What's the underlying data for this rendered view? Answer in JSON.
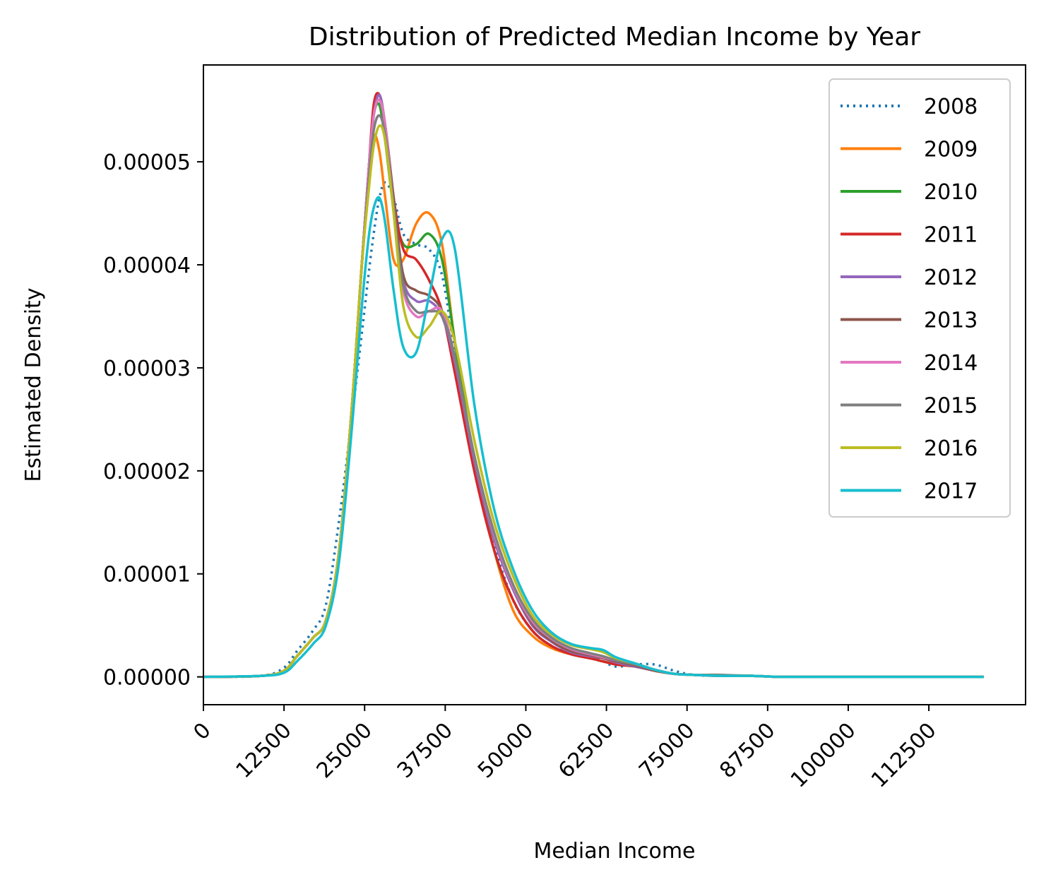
{
  "chart_data": {
    "type": "line",
    "title": "Distribution of Predicted Median Income by Year",
    "xlabel": "Median Income",
    "ylabel": "Estimated Density",
    "xlim": [
      0,
      127500
    ],
    "ylim": [
      -2.7e-06,
      5.94e-05
    ],
    "xticks": [
      "0",
      "12500",
      "25000",
      "37500",
      "50000",
      "62500",
      "75000",
      "87500",
      "100000",
      "112500"
    ],
    "yticks": [
      "0.00000",
      "0.00001",
      "0.00002",
      "0.00003",
      "0.00004",
      "0.00005"
    ],
    "grid": false,
    "legend_position": "top-right",
    "series": [
      {
        "name": "2008",
        "color": "#1f77b4",
        "dash": "dotted",
        "x": [
          0,
          9000,
          12500,
          14500,
          17000,
          19000,
          21000,
          23000,
          24500,
          25600,
          26400,
          27300,
          28200,
          29500,
          31000,
          33000,
          35000,
          37000,
          39000,
          42000,
          45000,
          48000,
          51000,
          54000,
          57000,
          60000,
          62000,
          64000,
          67000,
          70000,
          73000,
          76000,
          80000,
          85000,
          90000,
          100000,
          110000,
          121000
        ],
        "y": [
          0,
          1e-07,
          9e-07,
          2.5e-06,
          4.5e-06,
          7e-06,
          1.5e-05,
          2.5e-05,
          3.3e-05,
          3.9e-05,
          4.3e-05,
          4.65e-05,
          4.8e-05,
          4.65e-05,
          4.3e-05,
          4.2e-05,
          4.15e-05,
          3.9e-05,
          3.15e-05,
          2.1e-05,
          1.3e-05,
          7.5e-06,
          4.5e-06,
          3e-06,
          2.3e-06,
          2e-06,
          1.5e-06,
          1e-06,
          1.2e-06,
          1.2e-06,
          6e-07,
          2e-07,
          1e-07,
          1e-07,
          0,
          0,
          0,
          0
        ]
      },
      {
        "name": "2009",
        "color": "#ff7f0e",
        "dash": "solid",
        "x": [
          0,
          9000,
          12500,
          14500,
          17000,
          19000,
          21000,
          23000,
          24500,
          25600,
          26400,
          27300,
          28200,
          29500,
          31000,
          33000,
          35000,
          37000,
          39000,
          42000,
          45000,
          48000,
          51000,
          54000,
          57000,
          60000,
          62000,
          64000,
          67000,
          70000,
          73000,
          76000,
          80000,
          85000,
          90000,
          100000,
          110000,
          121000
        ],
        "y": [
          0,
          1e-07,
          6e-07,
          2e-06,
          3.8e-06,
          5.5e-06,
          1.2e-05,
          2.6e-05,
          3.95e-05,
          4.8e-05,
          5.25e-05,
          5.1e-05,
          4.65e-05,
          4.05e-05,
          4.05e-05,
          4.4e-05,
          4.5e-05,
          4.2e-05,
          3.25e-05,
          2.1e-05,
          1.25e-05,
          6.5e-06,
          4e-06,
          2.8e-06,
          2.2e-06,
          1.8e-06,
          1.5e-06,
          1.2e-06,
          1e-06,
          6e-07,
          3e-07,
          2e-07,
          1e-07,
          1e-07,
          0,
          0,
          0,
          0
        ]
      },
      {
        "name": "2010",
        "color": "#2ca02c",
        "dash": "solid",
        "x": [
          0,
          9000,
          12500,
          14500,
          17000,
          19000,
          21000,
          23000,
          24500,
          25600,
          26400,
          27300,
          28200,
          29500,
          31000,
          33000,
          35000,
          37000,
          39000,
          42000,
          45000,
          48000,
          51000,
          54000,
          57000,
          60000,
          62000,
          64000,
          67000,
          70000,
          73000,
          76000,
          80000,
          85000,
          90000,
          100000,
          110000,
          121000
        ],
        "y": [
          0,
          1e-07,
          6e-07,
          2e-06,
          3.8e-06,
          5.5e-06,
          1.2e-05,
          2.6e-05,
          3.95e-05,
          4.9e-05,
          5.45e-05,
          5.55e-05,
          5.2e-05,
          4.55e-05,
          4.2e-05,
          4.2e-05,
          4.3e-05,
          4.05e-05,
          3.25e-05,
          2.1e-05,
          1.25e-05,
          7.5e-06,
          4.5e-06,
          3e-06,
          2.2e-06,
          1.8e-06,
          1.5e-06,
          1.2e-06,
          1e-06,
          6e-07,
          3e-07,
          2e-07,
          1e-07,
          1e-07,
          0,
          0,
          0,
          0
        ]
      },
      {
        "name": "2011",
        "color": "#d62728",
        "dash": "solid",
        "x": [
          0,
          9000,
          12500,
          14500,
          17000,
          19000,
          21000,
          23000,
          24500,
          25600,
          26400,
          27300,
          28200,
          29500,
          31000,
          33000,
          35000,
          37000,
          39000,
          42000,
          45000,
          48000,
          51000,
          54000,
          57000,
          60000,
          62000,
          64000,
          67000,
          70000,
          73000,
          76000,
          80000,
          85000,
          90000,
          100000,
          110000,
          121000
        ],
        "y": [
          0,
          1e-07,
          6e-07,
          2e-06,
          3.8e-06,
          5.5e-06,
          1.2e-05,
          2.6e-05,
          3.95e-05,
          4.9e-05,
          5.55e-05,
          5.65e-05,
          5.35e-05,
          4.65e-05,
          4.15e-05,
          4.05e-05,
          3.85e-05,
          3.55e-05,
          2.95e-05,
          2e-05,
          1.25e-05,
          7.5e-06,
          4.5e-06,
          3e-06,
          2.2e-06,
          1.8e-06,
          1.5e-06,
          1.2e-06,
          1e-06,
          6e-07,
          3e-07,
          2e-07,
          1e-07,
          1e-07,
          0,
          0,
          0,
          0
        ]
      },
      {
        "name": "2012",
        "color": "#9467bd",
        "dash": "solid",
        "x": [
          0,
          9000,
          12500,
          14500,
          17000,
          19000,
          21000,
          23000,
          24500,
          25600,
          26400,
          27300,
          28200,
          29500,
          31000,
          33000,
          35000,
          37000,
          39000,
          42000,
          45000,
          48000,
          51000,
          54000,
          57000,
          60000,
          62000,
          64000,
          67000,
          70000,
          73000,
          76000,
          80000,
          85000,
          90000,
          100000,
          110000,
          121000
        ],
        "y": [
          0,
          1e-07,
          6e-07,
          2e-06,
          3.8e-06,
          5.5e-06,
          1.2e-05,
          2.6e-05,
          3.95e-05,
          4.9e-05,
          5.45e-05,
          5.65e-05,
          5.35e-05,
          4.65e-05,
          3.85e-05,
          3.65e-05,
          3.65e-05,
          3.5e-05,
          3.05e-05,
          2.1e-05,
          1.35e-05,
          8.5e-06,
          5e-06,
          3.4e-06,
          2.4e-06,
          2e-06,
          1.8e-06,
          1.4e-06,
          1e-06,
          6e-07,
          3e-07,
          2e-07,
          1e-07,
          1e-07,
          0,
          0,
          0,
          0
        ]
      },
      {
        "name": "2013",
        "color": "#8c564b",
        "dash": "solid",
        "x": [
          0,
          9000,
          12500,
          14500,
          17000,
          19000,
          21000,
          23000,
          24500,
          25600,
          26400,
          27300,
          28200,
          29500,
          31000,
          33000,
          35000,
          37000,
          39000,
          42000,
          45000,
          48000,
          51000,
          54000,
          57000,
          60000,
          62000,
          64000,
          67000,
          70000,
          73000,
          76000,
          80000,
          85000,
          90000,
          100000,
          110000,
          121000
        ],
        "y": [
          0,
          1e-07,
          6e-07,
          2e-06,
          3.8e-06,
          5.5e-06,
          1.2e-05,
          2.6e-05,
          3.95e-05,
          4.9e-05,
          5.45e-05,
          5.6e-05,
          5.35e-05,
          4.65e-05,
          3.9e-05,
          3.75e-05,
          3.7e-05,
          3.55e-05,
          3.1e-05,
          2.15e-05,
          1.4e-05,
          8.8e-06,
          5.2e-06,
          3.5e-06,
          2.5e-06,
          2.1e-06,
          1.8e-06,
          1.5e-06,
          1.1e-06,
          6e-07,
          3e-07,
          2e-07,
          1e-07,
          1e-07,
          0,
          0,
          0,
          0
        ]
      },
      {
        "name": "2014",
        "color": "#e377c2",
        "dash": "solid",
        "x": [
          0,
          9000,
          12500,
          14500,
          17000,
          19000,
          21000,
          23000,
          24500,
          25600,
          26400,
          27300,
          28200,
          29500,
          31000,
          33000,
          35000,
          37000,
          39000,
          42000,
          45000,
          48000,
          51000,
          54000,
          57000,
          60000,
          62000,
          64000,
          67000,
          70000,
          73000,
          76000,
          80000,
          85000,
          90000,
          100000,
          110000,
          121000
        ],
        "y": [
          0,
          1e-07,
          6e-07,
          2e-06,
          3.8e-06,
          5.5e-06,
          1.2e-05,
          2.6e-05,
          3.95e-05,
          4.9e-05,
          5.45e-05,
          5.6e-05,
          5.35e-05,
          4.55e-05,
          3.75e-05,
          3.5e-05,
          3.55e-05,
          3.55e-05,
          3.1e-05,
          2.15e-05,
          1.4e-05,
          8.8e-06,
          5.4e-06,
          3.7e-06,
          2.7e-06,
          2.2e-06,
          1.9e-06,
          1.6e-06,
          1.2e-06,
          7e-07,
          3e-07,
          2e-07,
          1e-07,
          1e-07,
          0,
          0,
          0,
          0
        ]
      },
      {
        "name": "2015",
        "color": "#7f7f7f",
        "dash": "solid",
        "x": [
          0,
          9000,
          12500,
          14500,
          17000,
          19000,
          21000,
          23000,
          24500,
          25600,
          26400,
          27300,
          28200,
          29500,
          31000,
          33000,
          35000,
          37000,
          39000,
          42000,
          45000,
          48000,
          51000,
          54000,
          57000,
          60000,
          62000,
          64000,
          67000,
          70000,
          73000,
          76000,
          80000,
          85000,
          90000,
          100000,
          110000,
          121000
        ],
        "y": [
          0,
          1e-07,
          6e-07,
          2e-06,
          3.8e-06,
          5.5e-06,
          1.2e-05,
          2.6e-05,
          3.95e-05,
          4.8e-05,
          5.3e-05,
          5.45e-05,
          5.25e-05,
          4.55e-05,
          3.8e-05,
          3.55e-05,
          3.55e-05,
          3.5e-05,
          3.1e-05,
          2.15e-05,
          1.42e-05,
          9e-06,
          5.6e-06,
          3.8e-06,
          2.8e-06,
          2.3e-06,
          2e-06,
          1.6e-06,
          1.2e-06,
          7e-07,
          3e-07,
          2e-07,
          2e-07,
          1e-07,
          0,
          0,
          0,
          0
        ]
      },
      {
        "name": "2016",
        "color": "#bcbd22",
        "dash": "solid",
        "x": [
          0,
          9000,
          12500,
          14500,
          17000,
          19000,
          21000,
          23000,
          24500,
          25600,
          26400,
          27300,
          28200,
          29500,
          31000,
          33000,
          35000,
          37000,
          39000,
          42000,
          45000,
          48000,
          51000,
          54000,
          57000,
          60000,
          62000,
          64000,
          67000,
          70000,
          73000,
          76000,
          80000,
          85000,
          90000,
          100000,
          110000,
          121000
        ],
        "y": [
          0,
          1e-07,
          6e-07,
          2e-06,
          3.8e-06,
          5.5e-06,
          1.2e-05,
          2.6e-05,
          3.95e-05,
          4.7e-05,
          5.15e-05,
          5.35e-05,
          5.2e-05,
          4.5e-05,
          3.6e-05,
          3.3e-05,
          3.4e-05,
          3.55e-05,
          3.25e-05,
          2.3e-05,
          1.52e-05,
          9.8e-06,
          6e-06,
          4.1e-06,
          3.1e-06,
          2.7e-06,
          2.4e-06,
          1.8e-06,
          1.3e-06,
          7e-07,
          3e-07,
          2e-07,
          1e-07,
          1e-07,
          0,
          0,
          0,
          0
        ]
      },
      {
        "name": "2017",
        "color": "#17becf",
        "dash": "solid",
        "x": [
          0,
          9000,
          12500,
          14500,
          17000,
          19000,
          21000,
          23000,
          24500,
          25600,
          26400,
          27300,
          28200,
          29500,
          31000,
          33000,
          35000,
          37000,
          39000,
          42000,
          45000,
          48000,
          51000,
          54000,
          57000,
          60000,
          62000,
          64000,
          67000,
          70000,
          73000,
          76000,
          80000,
          85000,
          90000,
          100000,
          110000,
          121000
        ],
        "y": [
          0,
          1e-07,
          4e-07,
          1.5e-06,
          3.2e-06,
          5e-06,
          1.1e-05,
          2.4e-05,
          3.55e-05,
          4.25e-05,
          4.55e-05,
          4.65e-05,
          4.4e-05,
          3.75e-05,
          3.2e-05,
          3.15e-05,
          3.7e-05,
          4.25e-05,
          4.15e-05,
          2.65e-05,
          1.65e-05,
          1.05e-05,
          6.5e-06,
          4.3e-06,
          3.2e-06,
          2.8e-06,
          2.6e-06,
          1.9e-06,
          1.3e-06,
          7e-07,
          3e-07,
          2e-07,
          1e-07,
          1e-07,
          0,
          0,
          0,
          0
        ]
      }
    ]
  }
}
